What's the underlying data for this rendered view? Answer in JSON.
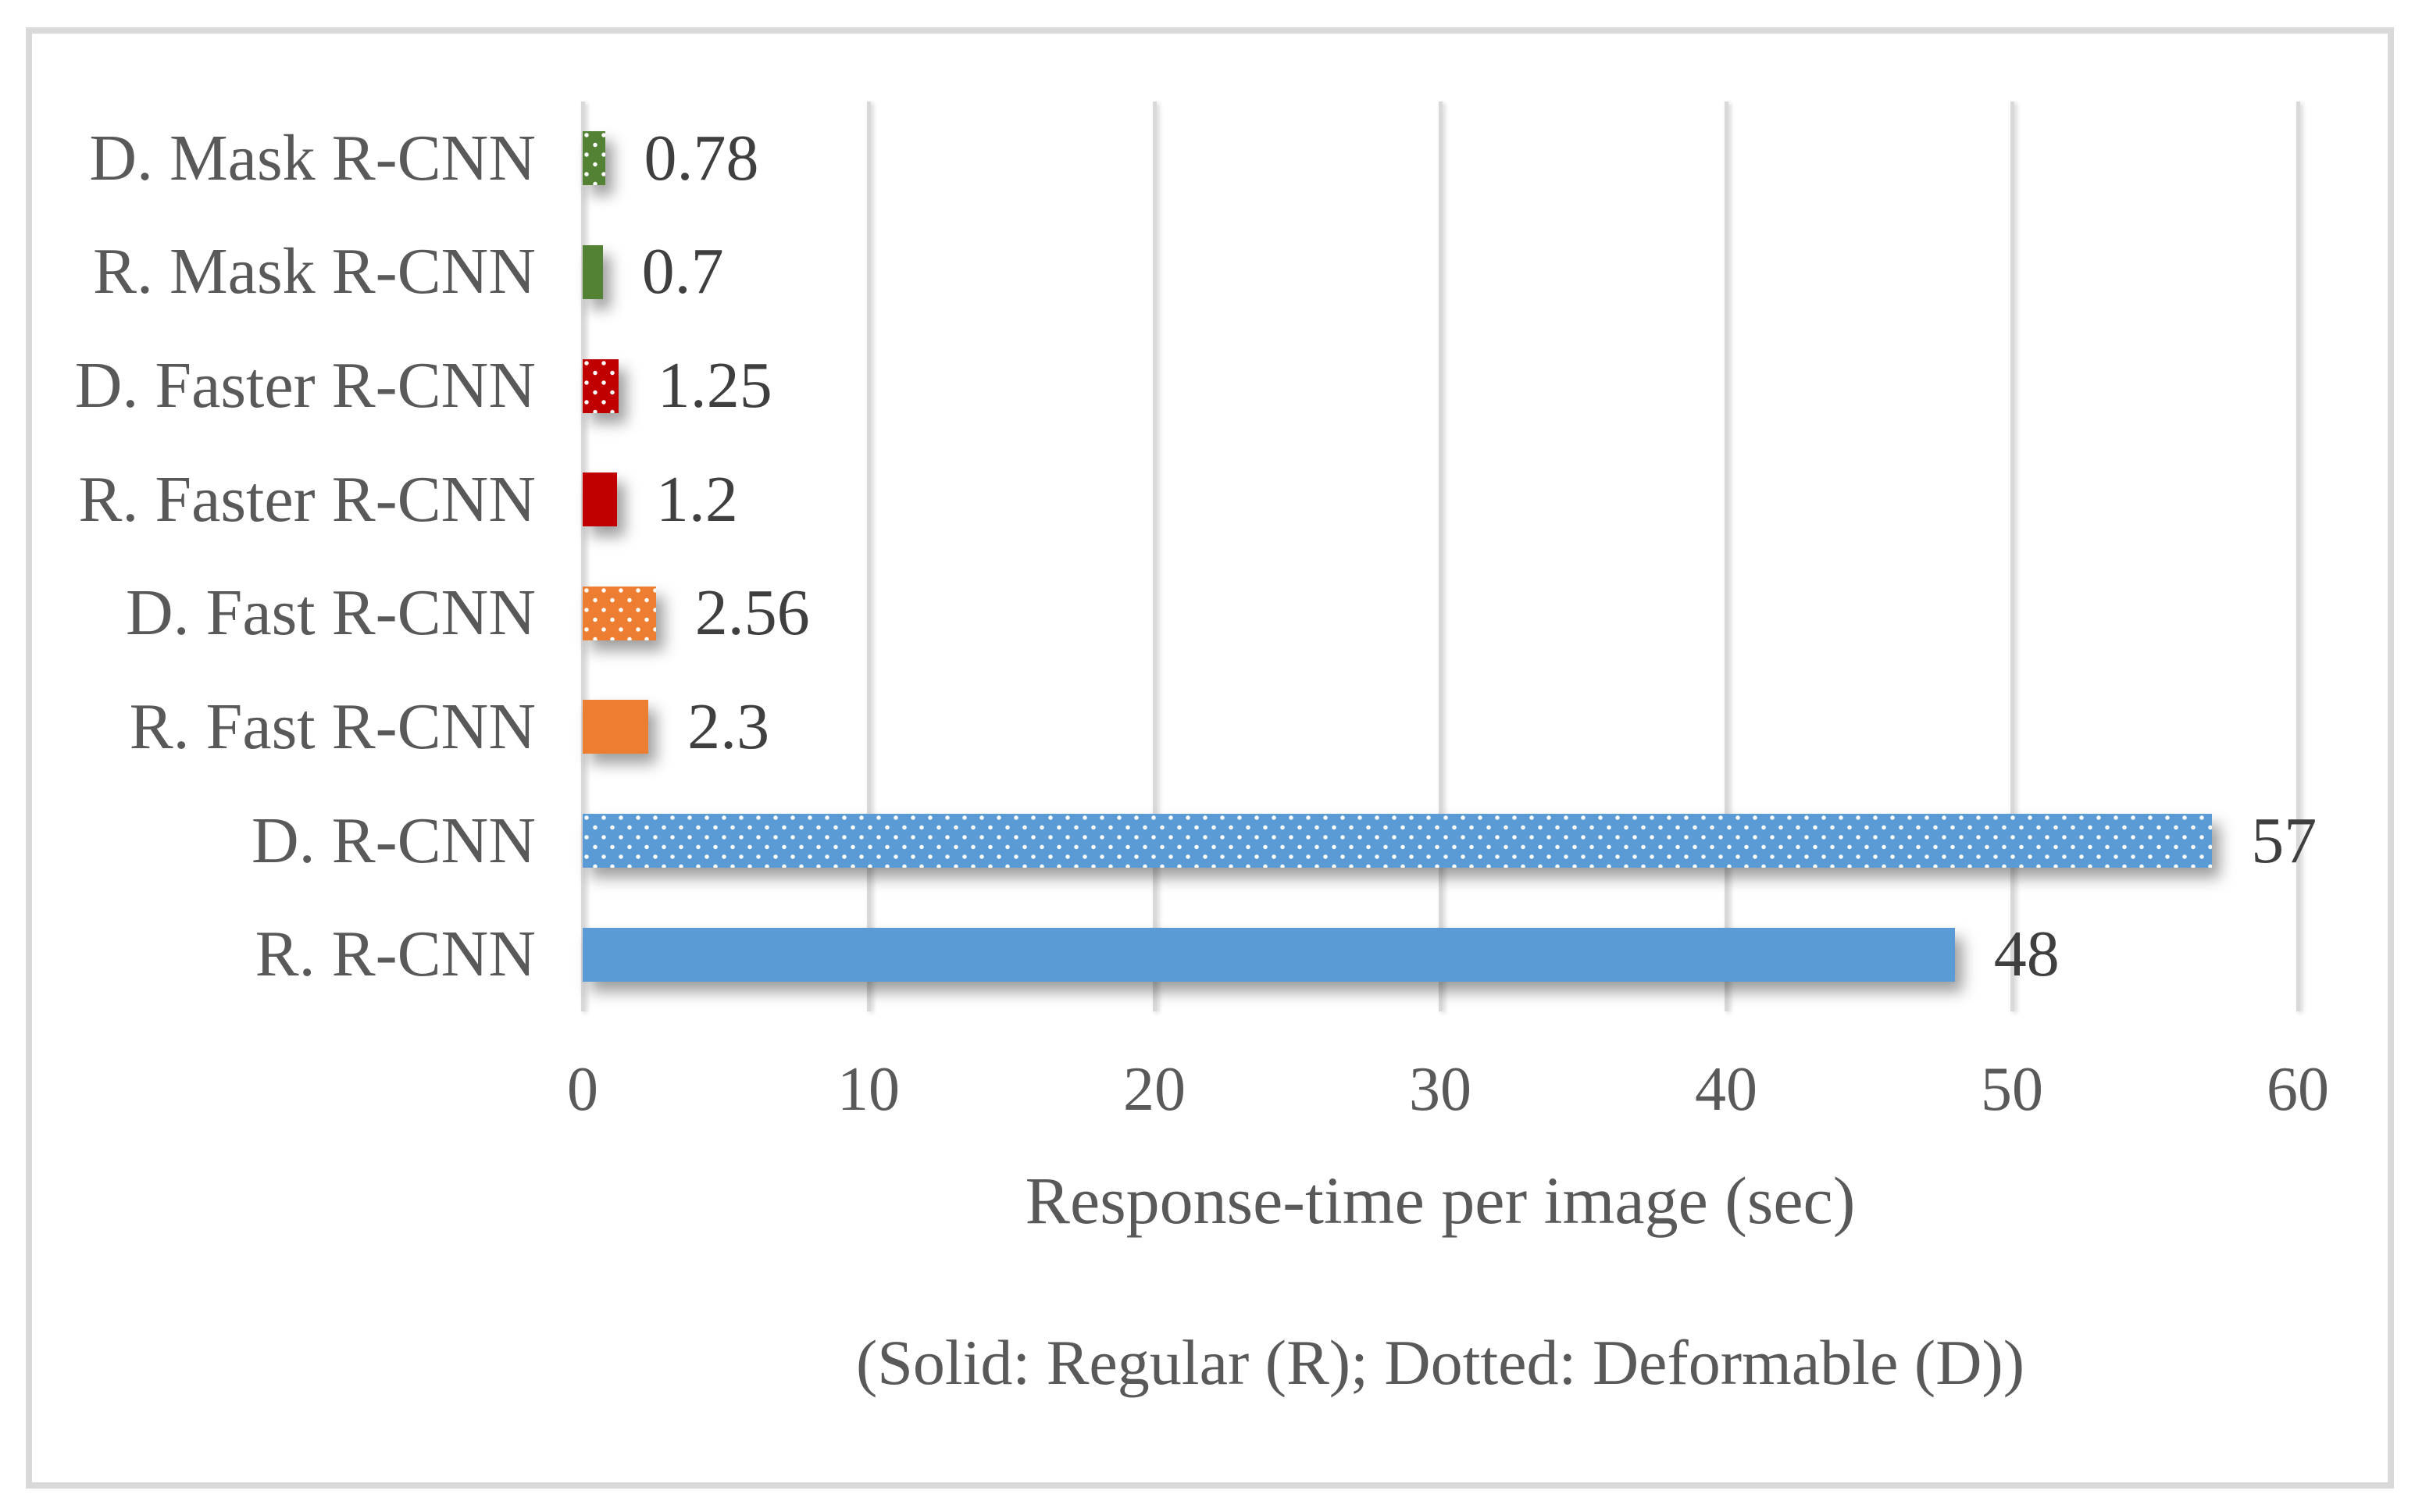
{
  "figure": {
    "border_color": "#D9D9D9",
    "background_color": "#FFFFFF"
  },
  "chart_data": {
    "type": "bar",
    "orientation": "horizontal",
    "xlabel": "Response-time per image (sec)",
    "caption": "(Solid: Regular (R); Dotted: Deformable (D))",
    "xlim": [
      0,
      60
    ],
    "xticks": [
      "0",
      "10",
      "20",
      "30",
      "40",
      "50",
      "60"
    ],
    "grid": true,
    "legend_position": "none",
    "categories": [
      "D. Mask R-CNN",
      "R. Mask R-CNN",
      "D. Faster R-CNN",
      "R. Faster R-CNN",
      "D. Fast R-CNN",
      "R. Fast R-CNN",
      "D. R-CNN",
      "R. R-CNN"
    ],
    "values": [
      0.78,
      0.7,
      1.25,
      1.2,
      2.56,
      2.3,
      57,
      48
    ],
    "value_labels": [
      "0.78",
      "0.7",
      "1.25",
      "1.2",
      "2.56",
      "2.3",
      "57",
      "48"
    ],
    "bar_styles": [
      {
        "color": "#548235",
        "pattern": "dotted"
      },
      {
        "color": "#548235",
        "pattern": "solid"
      },
      {
        "color": "#C00000",
        "pattern": "dotted"
      },
      {
        "color": "#C00000",
        "pattern": "solid"
      },
      {
        "color": "#ED7D31",
        "pattern": "dotted"
      },
      {
        "color": "#ED7D31",
        "pattern": "solid"
      },
      {
        "color": "#5B9BD5",
        "pattern": "dotted"
      },
      {
        "color": "#5B9BD5",
        "pattern": "solid"
      }
    ],
    "gridline_color": "#D9D9D9",
    "text_colors": {
      "category_label": "#595959",
      "value_label": "#3F3F3F",
      "tick_label": "#595959",
      "axis_title": "#595959",
      "caption": "#595959"
    }
  }
}
